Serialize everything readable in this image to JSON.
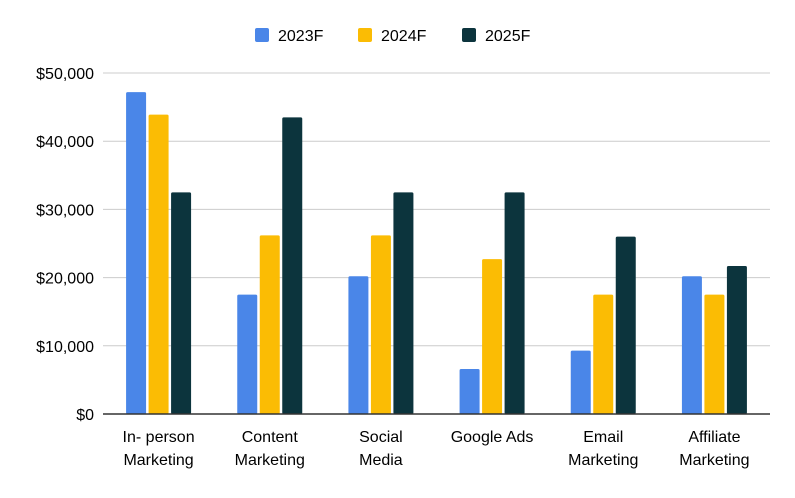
{
  "chart_data": {
    "type": "bar",
    "title": "",
    "xlabel": "",
    "ylabel": "",
    "categories": [
      [
        "In- person",
        "Marketing"
      ],
      [
        "Content",
        "Marketing"
      ],
      [
        "Social",
        "Media"
      ],
      [
        "Google Ads"
      ],
      [
        "Email",
        "Marketing"
      ],
      [
        "Affiliate",
        "Marketing"
      ]
    ],
    "series": [
      {
        "name": "2023F",
        "color": "#4a86e8",
        "values": [
          47200,
          17500,
          20200,
          6600,
          9300,
          20200
        ]
      },
      {
        "name": "2024F",
        "color": "#fbbc04",
        "values": [
          43900,
          26200,
          26200,
          22700,
          17500,
          17500
        ]
      },
      {
        "name": "2025F",
        "color": "#0c343d",
        "values": [
          32500,
          43500,
          32500,
          32500,
          26000,
          21700
        ]
      }
    ],
    "ylim": [
      0,
      50000
    ],
    "yticks": [
      0,
      10000,
      20000,
      30000,
      40000,
      50000
    ],
    "ytick_labels": [
      "$0",
      "$10,000",
      "$20,000",
      "$30,000",
      "$40,000",
      "$50,000"
    ],
    "grid": true,
    "legend_position": "top-center",
    "gridline_color": "#cccccc",
    "axis_color": "#333333"
  }
}
